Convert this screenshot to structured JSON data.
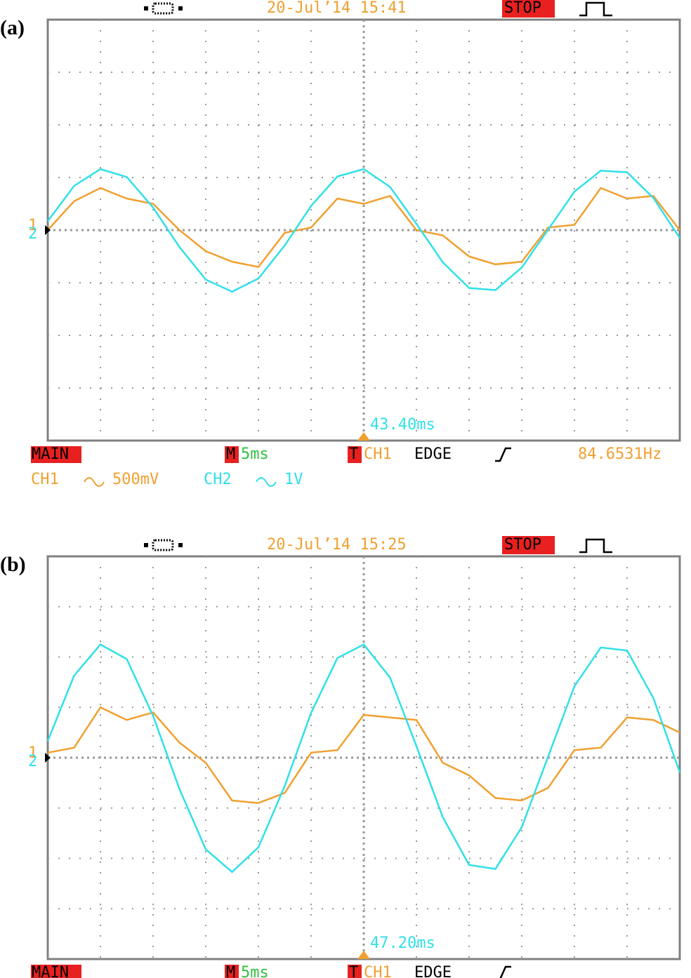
{
  "chart_data": [
    {
      "type": "line",
      "panel_label": "(a)",
      "timestamp": "20-Jul’14 15:41",
      "run_state": "STOP",
      "cursor_time": "43.40ms",
      "channel_markers": [
        "1",
        "2"
      ],
      "status": {
        "mode": "MAIN",
        "timebase_label": "M",
        "timebase": "5ms",
        "trigger_label": "T",
        "trigger_source": "CH1",
        "trigger_type": "EDGE",
        "frequency": "84.6531Hz"
      },
      "channels": [
        {
          "name": "CH1",
          "scale": "500mV"
        },
        {
          "name": "CH2",
          "scale": "1V"
        }
      ],
      "xlim": [
        0,
        12
      ],
      "ylim": [
        -4,
        4
      ],
      "grid": true,
      "x": [
        0,
        0.5,
        1,
        1.5,
        2,
        2.5,
        3,
        3.5,
        4,
        4.5,
        5,
        5.5,
        6,
        6.5,
        7,
        7.5,
        8,
        8.5,
        9,
        9.5,
        10,
        10.5,
        11,
        11.5,
        12
      ],
      "series": [
        {
          "color": "#f0a030",
          "values": [
            0.0,
            0.55,
            0.8,
            0.6,
            0.5,
            0.0,
            -0.4,
            -0.6,
            -0.7,
            -0.05,
            0.05,
            0.6,
            0.5,
            0.65,
            0.0,
            -0.1,
            -0.5,
            -0.65,
            -0.6,
            0.05,
            0.1,
            0.8,
            0.6,
            0.65,
            0.0
          ]
        },
        {
          "color": "#30e0e8",
          "values": [
            0.17,
            0.84,
            1.16,
            1.01,
            0.43,
            -0.32,
            -0.94,
            -1.17,
            -0.92,
            -0.29,
            0.46,
            1.02,
            1.16,
            0.82,
            0.12,
            -0.61,
            -1.1,
            -1.14,
            -0.71,
            0.01,
            0.73,
            1.13,
            1.1,
            0.61,
            -0.15
          ]
        }
      ]
    },
    {
      "type": "line",
      "panel_label": "(b)",
      "timestamp": "20-Jul’14 15:25",
      "run_state": "STOP",
      "cursor_time": "47.20ms",
      "channel_markers": [
        "1",
        "2"
      ],
      "status": {
        "mode": "MAIN",
        "timebase_label": "M",
        "timebase": "5ms",
        "trigger_label": "T",
        "trigger_source": "CH1",
        "trigger_type": "EDGE"
      },
      "xlim": [
        0,
        12
      ],
      "ylim": [
        -4,
        4
      ],
      "grid": true,
      "x": [
        0,
        0.5,
        1,
        1.5,
        2,
        2.5,
        3,
        3.5,
        4,
        4.5,
        5,
        5.5,
        6,
        6.5,
        7,
        7.5,
        8,
        8.5,
        9,
        9.5,
        10,
        10.5,
        11,
        11.5,
        12
      ],
      "series": [
        {
          "color": "#f0a030",
          "values": [
            0.1,
            0.2,
            1.0,
            0.75,
            0.9,
            0.3,
            -0.1,
            -0.85,
            -0.9,
            -0.7,
            0.1,
            0.15,
            0.85,
            0.8,
            0.75,
            -0.1,
            -0.35,
            -0.8,
            -0.85,
            -0.6,
            0.15,
            0.2,
            0.8,
            0.75,
            0.5
          ]
        },
        {
          "color": "#30e0e8",
          "values": [
            0.33,
            1.63,
            2.25,
            1.96,
            0.83,
            -0.62,
            -1.82,
            -2.27,
            -1.78,
            -0.56,
            0.89,
            1.98,
            2.25,
            1.59,
            0.23,
            -1.18,
            -2.13,
            -2.21,
            -1.38,
            0.02,
            1.42,
            2.19,
            2.13,
            1.18,
            -0.29
          ]
        }
      ]
    }
  ]
}
